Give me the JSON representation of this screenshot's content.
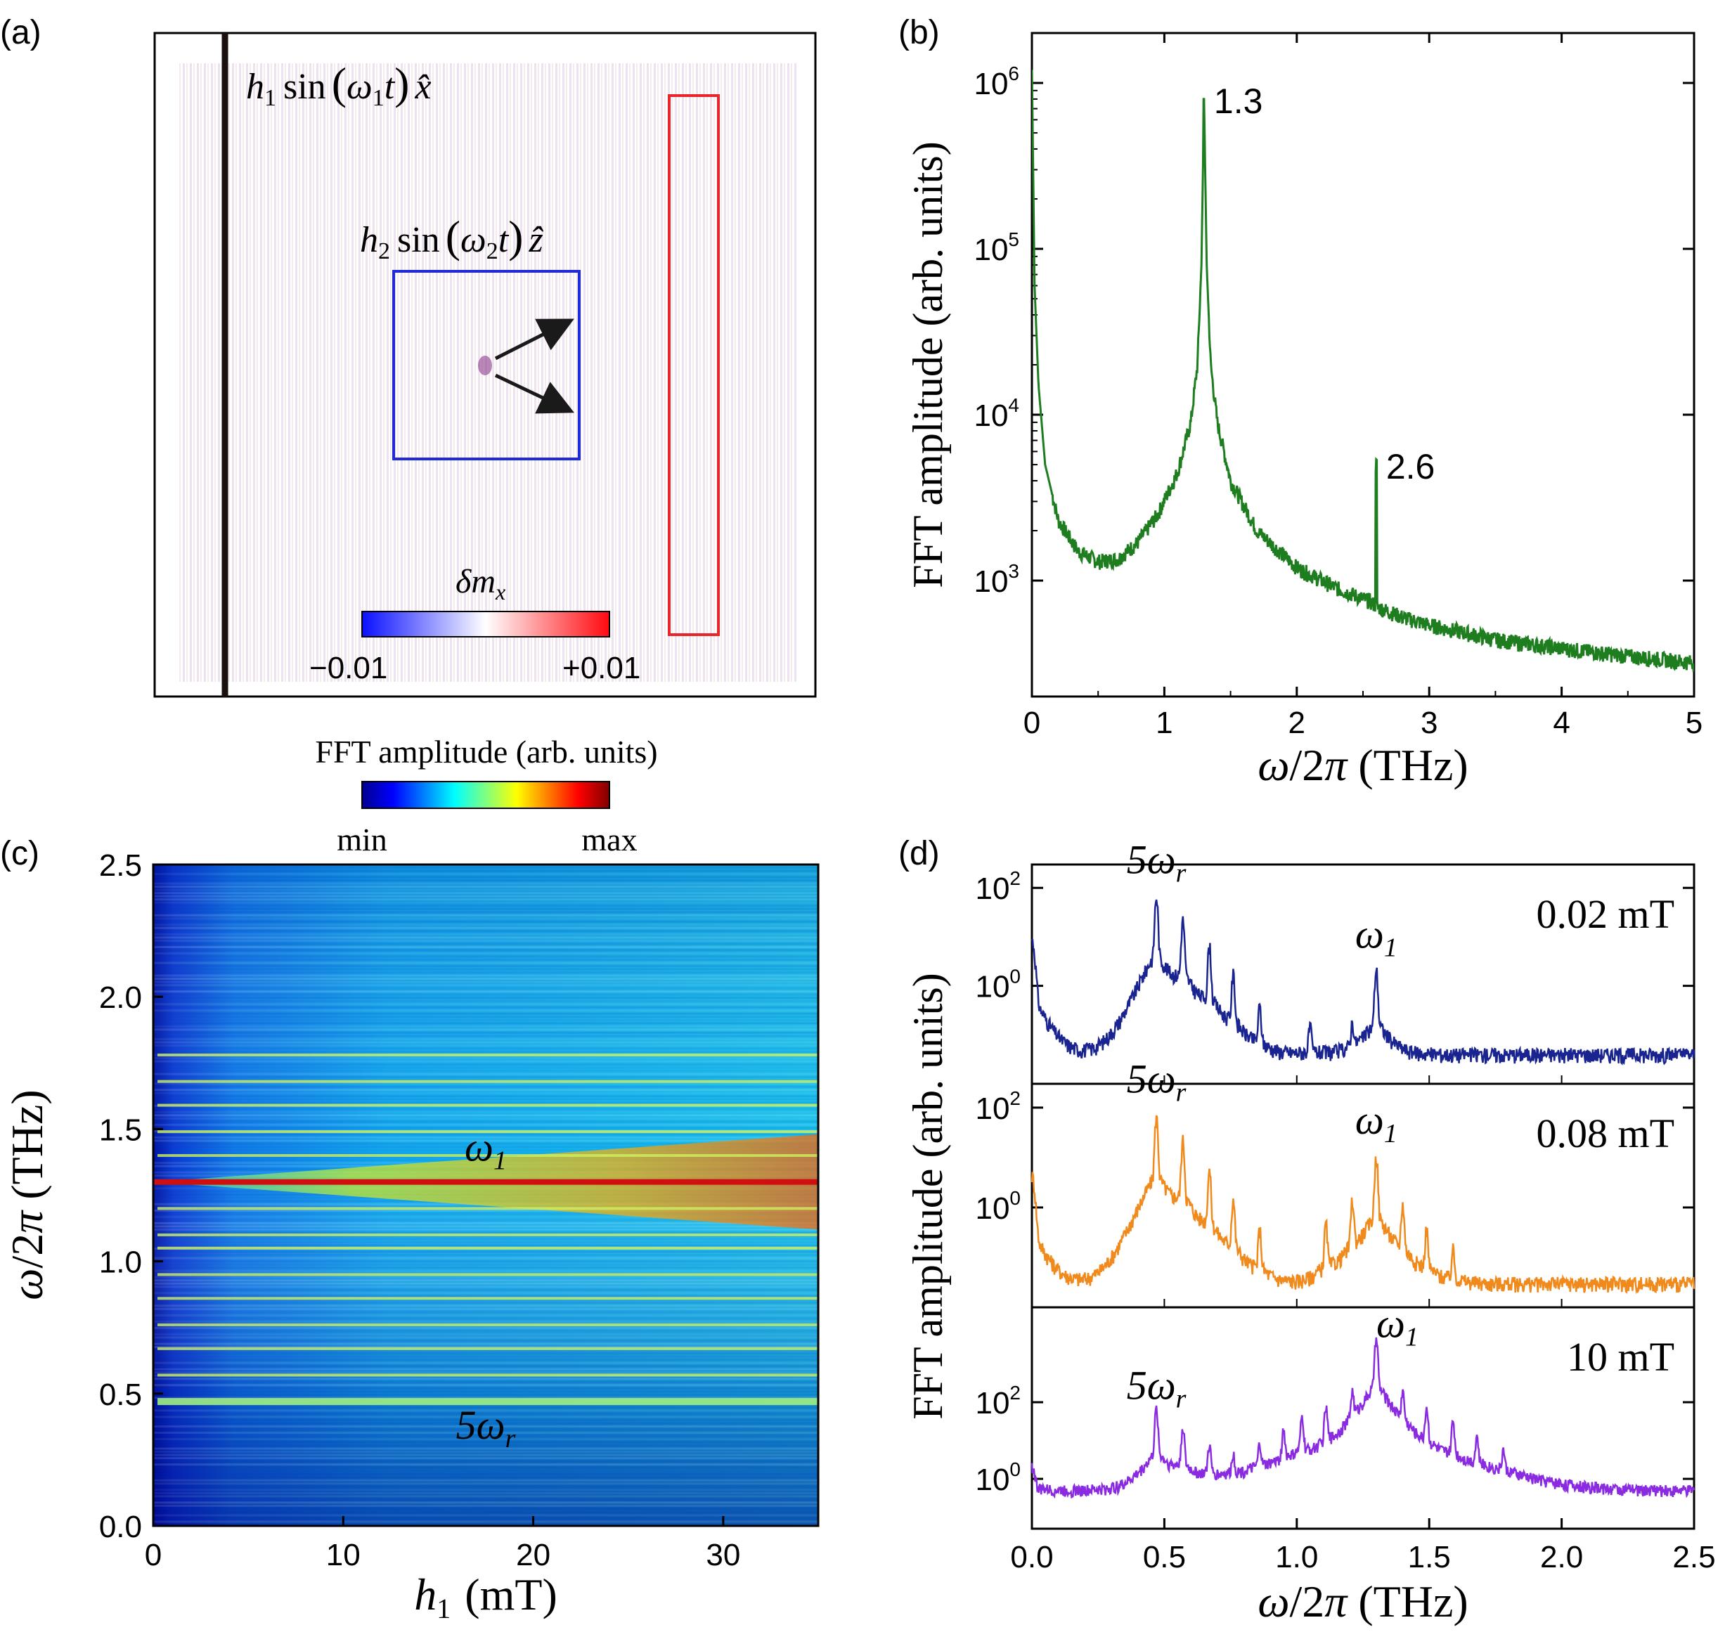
{
  "panel_labels": {
    "a": "(a)",
    "b": "(b)",
    "c": "(c)",
    "d": "(d)"
  },
  "panel_a": {
    "source_field_label": "h₁ sin(ω₁t) x̂",
    "source_field_parts": {
      "h": "h",
      "sub": "1",
      "sin": "sin",
      "omega": "ω",
      "t": "t",
      "hat": "x̂"
    },
    "probe_field_label": "h₂ sin(ω₂t) ẑ",
    "probe_field_parts": {
      "h": "h",
      "sub": "2",
      "sin": "sin",
      "omega": "ω",
      "t": "t",
      "hat": "ẑ"
    },
    "colorbar_title": "δmₓ",
    "colorbar_title_parts": {
      "delta_m": "δm",
      "sub": "x"
    },
    "colorbar_min": "−0.01",
    "colorbar_max": "+0.01",
    "colors": {
      "source_line": "#1a1010",
      "probe_box": "#1f2bd6",
      "detect_box": "#e8252d",
      "arrow": "#1a1a1a"
    }
  },
  "colorbar_c": {
    "title": "FFT amplitude (arb. units)",
    "min_label": "min",
    "max_label": "max"
  },
  "chart_data": [
    {
      "id": "b",
      "type": "line",
      "xlabel": "ω/2π  (THz)",
      "ylabel": "FFT amplitude (arb. units)",
      "xlim": [
        0,
        5
      ],
      "ylim": [
        200,
        2000000
      ],
      "yscale": "log",
      "xticks": [
        0,
        1,
        2,
        3,
        4,
        5
      ],
      "yticks": [
        {
          "value": 1000,
          "base": "10",
          "exp": "3"
        },
        {
          "value": 10000,
          "base": "10",
          "exp": "4"
        },
        {
          "value": 100000,
          "base": "10",
          "exp": "5"
        },
        {
          "value": 1000000,
          "base": "10",
          "exp": "6"
        }
      ],
      "color": "#1e7d1e",
      "peaks": [
        {
          "x": 1.3,
          "y": 800000,
          "label": "1.3"
        },
        {
          "x": 2.6,
          "y": 5000,
          "label": "2.6"
        }
      ],
      "baseline": [
        [
          0.0,
          1200000
        ],
        [
          0.02,
          60000
        ],
        [
          0.05,
          15000
        ],
        [
          0.1,
          5000
        ],
        [
          0.2,
          2300
        ],
        [
          0.35,
          1500
        ],
        [
          0.5,
          1300
        ],
        [
          0.65,
          1350
        ],
        [
          0.8,
          1700
        ],
        [
          0.95,
          2500
        ],
        [
          1.1,
          4500
        ],
        [
          1.2,
          9000
        ],
        [
          1.25,
          20000
        ],
        [
          1.28,
          80000
        ],
        [
          1.3,
          800000
        ],
        [
          1.32,
          80000
        ],
        [
          1.35,
          20000
        ],
        [
          1.4,
          9000
        ],
        [
          1.5,
          4000
        ],
        [
          1.7,
          2000
        ],
        [
          2.0,
          1200
        ],
        [
          2.3,
          900
        ],
        [
          2.55,
          750
        ],
        [
          2.6,
          700
        ],
        [
          2.8,
          600
        ],
        [
          3.0,
          540
        ],
        [
          3.5,
          440
        ],
        [
          4.0,
          390
        ],
        [
          4.5,
          350
        ],
        [
          5.0,
          320
        ]
      ]
    },
    {
      "id": "c",
      "type": "heatmap",
      "xlabel": "h₁ (mT)",
      "xlabel_parts": {
        "h": "h",
        "sub": "1",
        "unit": "(mT)"
      },
      "ylabel": "ω/2π  (THz)",
      "xlim": [
        0,
        35
      ],
      "ylim": [
        0,
        2.5
      ],
      "xticks": [
        0,
        10,
        20,
        30
      ],
      "yticks": [
        "0.0",
        "0.5",
        "1.0",
        "1.5",
        "2.0",
        "2.5"
      ],
      "harmonic_lines_THz": [
        0.47,
        0.57,
        0.67,
        0.76,
        0.86,
        0.95,
        1.05,
        1.1,
        1.2,
        1.4,
        1.49,
        1.59,
        1.68,
        1.78
      ],
      "main_line_THz": 1.3,
      "annotations": [
        {
          "text": "ω₁",
          "base": "ω",
          "sub": "1",
          "x": 17.5,
          "y": 1.38
        },
        {
          "text": "5ωᵣ",
          "base": "5ω",
          "sub": "r",
          "x": 17.5,
          "y": 0.33
        }
      ]
    },
    {
      "id": "d",
      "type": "line",
      "xlabel": "ω/2π  (THz)",
      "ylabel": "FFT amplitude (arb. units)",
      "xlim": [
        0,
        2.5
      ],
      "xticks": [
        "0.0",
        "0.5",
        "1.0",
        "1.5",
        "2.0",
        "2.5"
      ],
      "yscale": "log",
      "series": [
        {
          "name": "0.02 mT",
          "color": "#1a2490",
          "ylim": [
            0.01,
            300
          ],
          "yticks": [
            {
              "value": 1,
              "base": "10",
              "exp": "0"
            },
            {
              "value": 100,
              "base": "10",
              "exp": "2"
            }
          ],
          "floor": 0.04,
          "peaks": [
            [
              0.0,
              8
            ],
            [
              0.47,
              60
            ],
            [
              0.57,
              20
            ],
            [
              0.67,
              6
            ],
            [
              0.76,
              1.5
            ],
            [
              0.86,
              0.3
            ],
            [
              1.3,
              2
            ],
            [
              1.21,
              0.12
            ],
            [
              1.05,
              0.1
            ]
          ],
          "labels": [
            {
              "text": "5ωᵣ",
              "base": "5ω",
              "sub": "r",
              "x": 0.47,
              "y": 200
            },
            {
              "text": "ω₁",
              "base": "ω",
              "sub": "1",
              "x": 1.3,
              "y": 6
            }
          ]
        },
        {
          "name": "0.08 mT",
          "color": "#f08a1c",
          "ylim": [
            0.01,
            300
          ],
          "yticks": [
            {
              "value": 1,
              "base": "10",
              "exp": "0"
            },
            {
              "value": 100,
              "base": "10",
              "exp": "2"
            }
          ],
          "floor": 0.03,
          "peaks": [
            [
              0.0,
              4
            ],
            [
              0.47,
              60
            ],
            [
              0.57,
              20
            ],
            [
              0.67,
              5
            ],
            [
              0.76,
              1.3
            ],
            [
              0.86,
              0.3
            ],
            [
              1.11,
              0.4
            ],
            [
              1.21,
              1.2
            ],
            [
              1.3,
              10
            ],
            [
              1.4,
              1.0
            ],
            [
              1.49,
              0.3
            ],
            [
              1.59,
              0.1
            ]
          ],
          "labels": [
            {
              "text": "5ωᵣ",
              "base": "5ω",
              "sub": "r",
              "x": 0.47,
              "y": 200
            },
            {
              "text": "ω₁",
              "base": "ω",
              "sub": "1",
              "x": 1.3,
              "y": 30
            }
          ]
        },
        {
          "name": "10 mT",
          "color": "#8a2be2",
          "ylim": [
            0.05,
            30000
          ],
          "yticks": [
            {
              "value": 1,
              "base": "10",
              "exp": "0"
            },
            {
              "value": 100,
              "base": "10",
              "exp": "2"
            }
          ],
          "floor": 0.5,
          "peaks": [
            [
              0.0,
              1.5
            ],
            [
              0.47,
              60
            ],
            [
              0.57,
              20
            ],
            [
              0.67,
              6
            ],
            [
              0.76,
              3
            ],
            [
              0.86,
              6
            ],
            [
              0.95,
              15
            ],
            [
              1.02,
              35
            ],
            [
              1.11,
              60
            ],
            [
              1.21,
              150
            ],
            [
              1.3,
              4000
            ],
            [
              1.4,
              150
            ],
            [
              1.49,
              60
            ],
            [
              1.59,
              25
            ],
            [
              1.68,
              10
            ],
            [
              1.78,
              4
            ]
          ],
          "labels": [
            {
              "text": "5ωᵣ",
              "base": "5ω",
              "sub": "r",
              "x": 0.47,
              "y": 120
            },
            {
              "text": "ω₁",
              "base": "ω",
              "sub": "1",
              "x": 1.38,
              "y": 5000
            }
          ]
        }
      ]
    }
  ]
}
